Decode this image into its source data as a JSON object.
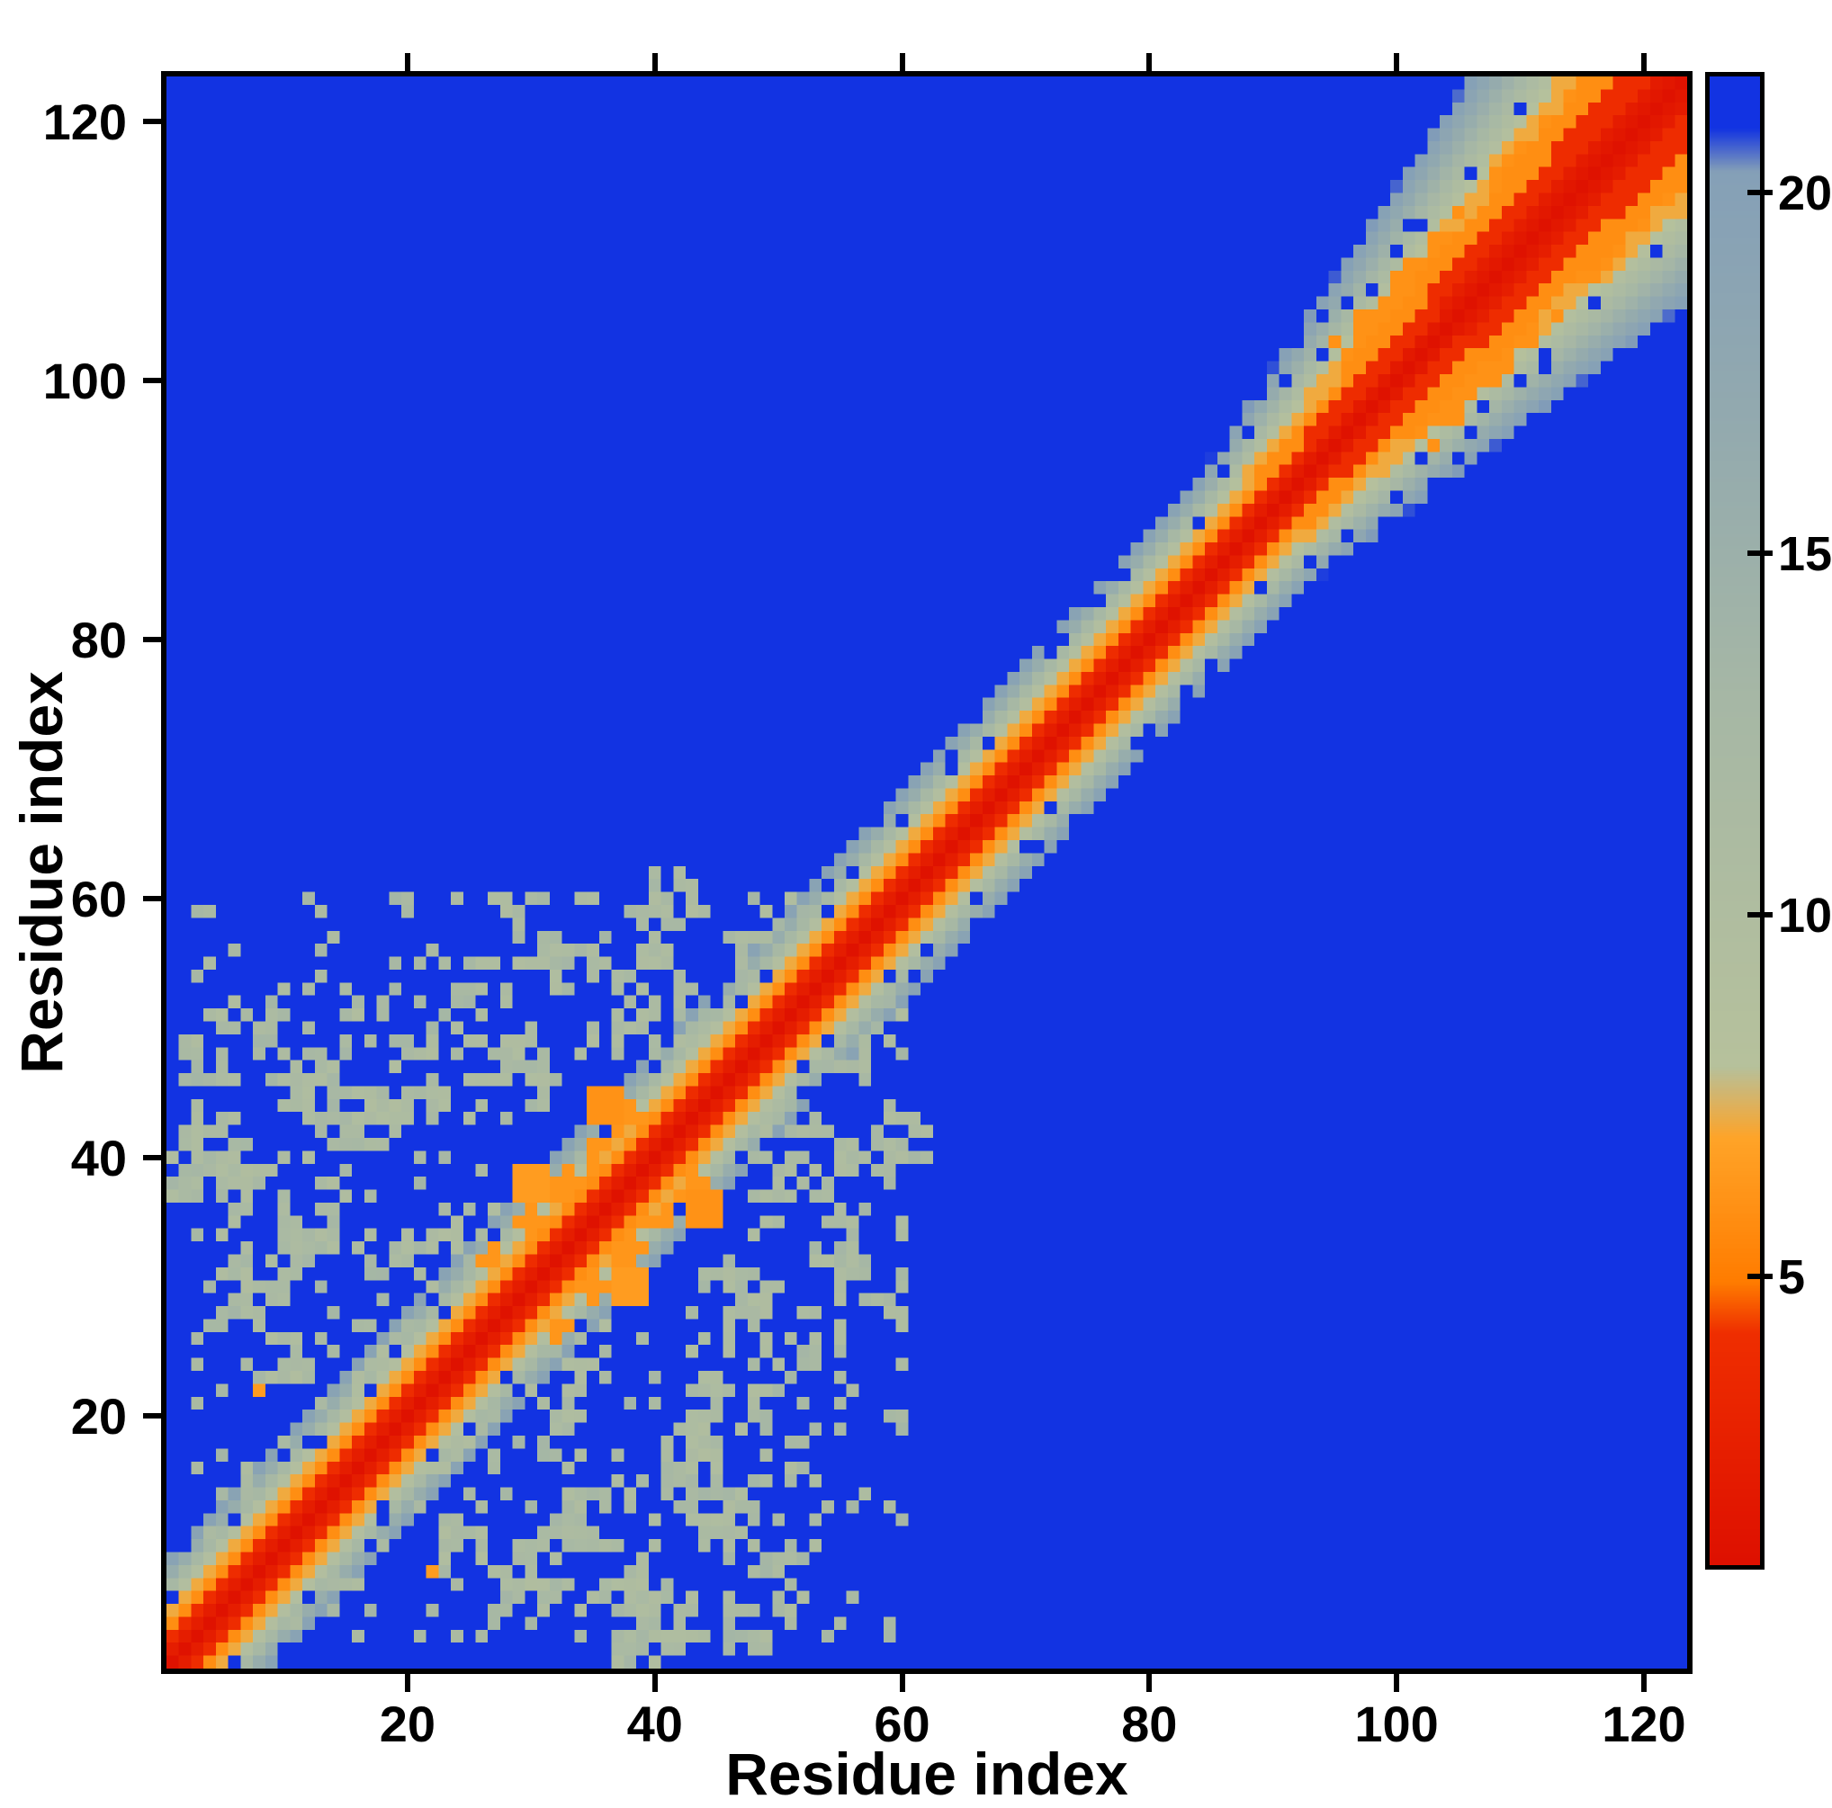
{
  "figure": {
    "background": "#ffffff"
  },
  "chart_data": {
    "type": "heatmap",
    "title": "",
    "xlabel": "Residue index",
    "ylabel": "Residue index",
    "x_range": [
      1,
      123
    ],
    "y_range": [
      1,
      123
    ],
    "x_ticks": [
      20,
      40,
      60,
      80,
      100,
      120
    ],
    "y_ticks": [
      20,
      40,
      60,
      80,
      100,
      120
    ],
    "grid": false,
    "legend": "colorbar-right",
    "colorbar": {
      "vmin": 1.0,
      "vmax": 21.6,
      "ticks": [
        5,
        10,
        15,
        20
      ]
    },
    "colormap_stops": [
      [
        1.0,
        "#de1000"
      ],
      [
        4.2,
        "#ef2e00"
      ],
      [
        4.9,
        "#ff7c00"
      ],
      [
        6.9,
        "#ffa428"
      ],
      [
        7.9,
        "#b6c19c"
      ],
      [
        13.0,
        "#a6b7a5"
      ],
      [
        17.0,
        "#92a9af"
      ],
      [
        20.3,
        "#85a0b7"
      ],
      [
        20.9,
        "#1233e2"
      ],
      [
        21.6,
        "#1233e2"
      ]
    ],
    "matrix_spec": {
      "description": "Symmetric residue-residue distance map: red diagonal (short distances), orange/gray band near diagonal, blue background at max distance; broad band in upper-right (residues ~90-123), scattered off-diagonal contacts for residues ~1-60.",
      "n": 123,
      "seed": 7,
      "background_value": 21.6,
      "band_profile": {
        "red_max": 1.2,
        "shoulder1": 2.4,
        "shoulder2": 3.6,
        "shoulder3": 4.6,
        "v_red0": 1.2,
        "v_red_slope": 1.2,
        "v1": 4.0,
        "v2": 5.8,
        "v3": 7.1,
        "v_base": 8.0,
        "v_slope": 3.3
      },
      "wide_band": {
        "t_start": 88,
        "t_end": 123,
        "max_factor": 2.4
      },
      "orange_streaks": [
        {
          "t0": 99,
          "t1": 122,
          "d0": 6,
          "d1": 8,
          "v": 6.0,
          "keep": 0.65
        },
        {
          "t0": 29,
          "t1": 41,
          "d0": 3,
          "d1": 6,
          "v": 6.2,
          "keep": 0.7
        }
      ],
      "gray_clusters": [
        [
          8,
          30,
          3
        ],
        [
          12,
          35,
          3
        ],
        [
          5,
          40,
          2
        ],
        [
          2,
          38,
          1
        ],
        [
          3,
          42,
          2
        ],
        [
          14,
          43,
          2
        ],
        [
          10,
          25,
          2
        ],
        [
          15,
          20,
          2
        ],
        [
          20,
          33,
          2
        ],
        [
          22,
          45,
          3
        ],
        [
          17,
          50,
          2
        ],
        [
          27,
          52,
          3
        ],
        [
          30,
          46,
          2
        ],
        [
          33,
          55,
          2
        ],
        [
          36,
          50,
          2
        ],
        [
          40,
          57,
          2
        ],
        [
          44,
          52,
          2
        ],
        [
          47,
          28,
          2
        ],
        [
          50,
          22,
          2
        ],
        [
          52,
          40,
          3
        ],
        [
          55,
          46,
          2
        ],
        [
          58,
          50,
          2
        ],
        [
          45,
          12,
          3
        ],
        [
          50,
          8,
          2
        ],
        [
          38,
          8,
          2
        ],
        [
          43,
          18,
          2
        ],
        [
          25,
          18,
          2
        ],
        [
          60,
          42,
          2
        ],
        [
          48,
          4,
          2
        ],
        [
          34,
          25,
          2
        ],
        [
          57,
          30,
          2
        ]
      ],
      "orange_spots": [
        [
          36,
          44,
          1,
          6.0
        ],
        [
          30,
          38,
          1,
          6.5
        ],
        [
          8,
          22,
          0,
          6.5
        ],
        [
          104,
          110,
          1,
          6.0
        ],
        [
          111,
          117,
          1,
          6.0
        ]
      ],
      "speckles": {
        "count": 240,
        "lo": 3,
        "hi": 60,
        "min_d": 7,
        "v_lo": 9.8,
        "v_hi": 13.5
      },
      "blue_noise": {
        "count": 150,
        "d_lo": 2,
        "d_hi": 11
      }
    }
  }
}
